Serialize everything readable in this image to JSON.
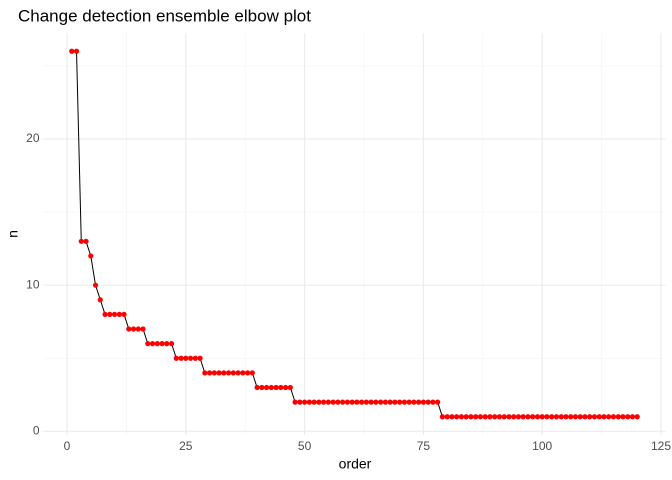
{
  "chart_data": {
    "type": "line",
    "title": "Change detection ensemble elbow plot",
    "x_label": "order",
    "y_label": "n",
    "x": [
      1,
      2,
      3,
      4,
      5,
      6,
      7,
      8,
      9,
      10,
      11,
      12,
      13,
      14,
      15,
      16,
      17,
      18,
      19,
      20,
      21,
      22,
      23,
      24,
      25,
      26,
      27,
      28,
      29,
      30,
      31,
      32,
      33,
      34,
      35,
      36,
      37,
      38,
      39,
      40,
      41,
      42,
      43,
      44,
      45,
      46,
      47,
      48,
      49,
      50,
      51,
      52,
      53,
      54,
      55,
      56,
      57,
      58,
      59,
      60,
      61,
      62,
      63,
      64,
      65,
      66,
      67,
      68,
      69,
      70,
      71,
      72,
      73,
      74,
      75,
      76,
      77,
      78,
      79,
      80,
      81,
      82,
      83,
      84,
      85,
      86,
      87,
      88,
      89,
      90,
      91,
      92,
      93,
      94,
      95,
      96,
      97,
      98,
      99,
      100,
      101,
      102,
      103,
      104,
      105,
      106,
      107,
      108,
      109,
      110,
      111,
      112,
      113,
      114,
      115,
      116,
      117,
      118,
      119,
      120
    ],
    "values": [
      26,
      26,
      13,
      13,
      12,
      10,
      9,
      8,
      8,
      8,
      8,
      8,
      7,
      7,
      7,
      7,
      6,
      6,
      6,
      6,
      6,
      6,
      5,
      5,
      5,
      5,
      5,
      5,
      4,
      4,
      4,
      4,
      4,
      4,
      4,
      4,
      4,
      4,
      4,
      3,
      3,
      3,
      3,
      3,
      3,
      3,
      3,
      2,
      2,
      2,
      2,
      2,
      2,
      2,
      2,
      2,
      2,
      2,
      2,
      2,
      2,
      2,
      2,
      2,
      2,
      2,
      2,
      2,
      2,
      2,
      2,
      2,
      2,
      2,
      2,
      2,
      2,
      2,
      1,
      1,
      1,
      1,
      1,
      1,
      1,
      1,
      1,
      1,
      1,
      1,
      1,
      1,
      1,
      1,
      1,
      1,
      1,
      1,
      1,
      1,
      1,
      1,
      1,
      1,
      1,
      1,
      1,
      1,
      1,
      1,
      1,
      1,
      1,
      1,
      1,
      1,
      1,
      1,
      1,
      1
    ],
    "color": "#ff0000",
    "line_color": "#000000",
    "xlim": [
      -4.95,
      125.95
    ],
    "ylim": [
      -0.25,
      27.25
    ],
    "xticks": [
      0,
      25,
      50,
      75,
      100,
      125
    ],
    "yticks": [
      0,
      10,
      20
    ],
    "grid": true
  }
}
